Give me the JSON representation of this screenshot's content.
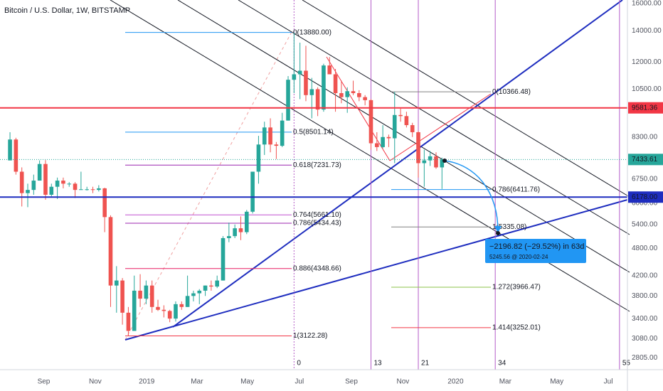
{
  "chart_data": {
    "type": "candlestick",
    "title": "Bitcoin / U.S. Dollar, 1W, BITSTAMP",
    "log_scale": true,
    "grid": true,
    "up_color": "#26a69a",
    "down_color": "#ef5350",
    "x": [
      0,
      1,
      2,
      3,
      4,
      5,
      6,
      7,
      8,
      9,
      10,
      11,
      12,
      13,
      14,
      15,
      16,
      17,
      18,
      19,
      20,
      21,
      22,
      23,
      24,
      25,
      26,
      27,
      28,
      29,
      30,
      31,
      32,
      33,
      34,
      35,
      36,
      37,
      38,
      39,
      40,
      41,
      42,
      43,
      44,
      45,
      46,
      47,
      48,
      49,
      50,
      51,
      52,
      53,
      54,
      55,
      56,
      57,
      58,
      59,
      60,
      61,
      62,
      63,
      64,
      65,
      66,
      67,
      68,
      69,
      70,
      71,
      72,
      73
    ],
    "open": [
      7400,
      8200,
      7000,
      6300,
      6400,
      6700,
      7270,
      6250,
      6500,
      6700,
      6600,
      6600,
      6400,
      6420,
      6420,
      6400,
      6450,
      5600,
      4000,
      4100,
      3500,
      3200,
      3900,
      3750,
      4000,
      3600,
      3550,
      3530,
      3400,
      3650,
      3600,
      3800,
      3850,
      3900,
      4000,
      3980,
      4100,
      5050,
      5100,
      5300,
      5200,
      5750,
      7000,
      8000,
      8700,
      8000,
      7950,
      9000,
      11000,
      11300,
      11500,
      10200,
      10500,
      9500,
      11800,
      11300,
      10300,
      10100,
      10400,
      10300,
      10100,
      9950,
      8050,
      7900,
      8300,
      8250,
      9250,
      9200,
      8800,
      8500,
      7300,
      7400,
      7550,
      7150
    ],
    "high": [
      8500,
      8270,
      7150,
      6600,
      6900,
      7400,
      7410,
      6600,
      6800,
      6800,
      6650,
      6650,
      7000,
      6500,
      6500,
      6550,
      6470,
      5650,
      4400,
      4150,
      3600,
      4200,
      4230,
      4100,
      4100,
      3730,
      3630,
      3550,
      3700,
      3700,
      4200,
      3900,
      3930,
      4000,
      4100,
      4200,
      5100,
      5450,
      5400,
      5620,
      5800,
      7000,
      8350,
      8950,
      9100,
      8100,
      9350,
      11200,
      13880,
      13200,
      13000,
      11100,
      10600,
      11900,
      12300,
      11600,
      10950,
      10600,
      10950,
      10450,
      10200,
      10000,
      8500,
      8800,
      8400,
      10366.48,
      9550,
      9400,
      8900,
      8550,
      7800,
      7750,
      7700,
      7500
    ],
    "low": [
      7400,
      6900,
      5900,
      5880,
      6250,
      6700,
      6100,
      6200,
      6120,
      6450,
      6500,
      6150,
      6400,
      6380,
      6300,
      6350,
      5200,
      3600,
      3500,
      3300,
      3122.28,
      3200,
      3600,
      3650,
      3500,
      3530,
      3420,
      3340,
      3350,
      3550,
      3600,
      3700,
      3650,
      3800,
      3900,
      3950,
      4100,
      4950,
      5050,
      5000,
      5150,
      5700,
      6600,
      7600,
      7700,
      7450,
      7900,
      9000,
      10300,
      10000,
      9900,
      9100,
      9200,
      9400,
      11300,
      9400,
      9800,
      9350,
      10200,
      9900,
      9700,
      7800,
      7750,
      7850,
      7900,
      7300,
      8950,
      8700,
      8300,
      6800,
      6500,
      7200,
      7100,
      6430
    ],
    "close": [
      8200,
      7000,
      6300,
      6400,
      6700,
      7270,
      6250,
      6500,
      6700,
      6600,
      6600,
      6400,
      6420,
      6420,
      6400,
      6450,
      5600,
      4000,
      4100,
      3500,
      3200,
      3900,
      3750,
      4000,
      3600,
      3550,
      3530,
      3400,
      3650,
      3600,
      3800,
      3850,
      3900,
      4000,
      3980,
      4100,
      5050,
      5100,
      5300,
      5200,
      5750,
      7000,
      8000,
      8700,
      8000,
      7950,
      9000,
      11000,
      11300,
      11500,
      10200,
      10500,
      9500,
      11800,
      11300,
      10300,
      10100,
      10400,
      10300,
      10100,
      9950,
      8050,
      7900,
      8300,
      8250,
      9250,
      9200,
      8800,
      8500,
      7300,
      7400,
      7550,
      7150,
      7433.61
    ],
    "xlim": [
      -1.69,
      104.34
    ],
    "xticks": [
      {
        "value": 5.7,
        "label": "Sep"
      },
      {
        "value": 14.4,
        "label": "Nov"
      },
      {
        "value": 23.1,
        "label": "2019"
      },
      {
        "value": 31.6,
        "label": "Mar"
      },
      {
        "value": 40.1,
        "label": "May"
      },
      {
        "value": 48.9,
        "label": "Jul"
      },
      {
        "value": 57.7,
        "label": "Sep"
      },
      {
        "value": 66.4,
        "label": "Nov"
      },
      {
        "value": 75.3,
        "label": "2020"
      },
      {
        "value": 83.7,
        "label": "Mar"
      },
      {
        "value": 92.4,
        "label": "May"
      },
      {
        "value": 101.1,
        "label": "Jul"
      }
    ],
    "ylim": [
      2645,
      16280
    ],
    "yticks": [
      {
        "value": 16000,
        "label": "16000.00"
      },
      {
        "value": 14000,
        "label": "14000.00"
      },
      {
        "value": 12000,
        "label": "12000.00"
      },
      {
        "value": 10500,
        "label": "10500.00"
      },
      {
        "value": 8300,
        "label": "8300.00"
      },
      {
        "value": 6750,
        "label": "6750.00"
      },
      {
        "value": 6000,
        "label": "6000.00"
      },
      {
        "value": 5400,
        "label": "5400.00"
      },
      {
        "value": 4800,
        "label": "4800.00"
      },
      {
        "value": 4200,
        "label": "4200.00"
      },
      {
        "value": 3800,
        "label": "3800.00"
      },
      {
        "value": 3400,
        "label": "3400.00"
      },
      {
        "value": 3080,
        "label": "3080.00"
      },
      {
        "value": 2805,
        "label": "2805.00"
      }
    ],
    "hlines": [
      {
        "value": 9581.36,
        "color": "#f23645"
      },
      {
        "value": 6178,
        "label": "6178.00",
        "color": "#1e2dbf"
      }
    ],
    "last_price": {
      "value": 7433.61,
      "color": "#26a69a"
    },
    "fib_left": [
      {
        "label": "0(13880.00)",
        "value": 13880,
        "color": "#2196f3"
      },
      {
        "label": "0.5(8501.14)",
        "value": 8501.14,
        "color": "#2196f3"
      },
      {
        "label": "0.618(7231.73)",
        "value": 7231.73,
        "color": "#9c27b0"
      },
      {
        "label": "0.764(5661.10)",
        "value": 5661.1,
        "color": "#c050d0"
      },
      {
        "label": "0.786(5434.43)",
        "value": 5434.43,
        "color": "#9c27b0"
      },
      {
        "label": "0.886(4348.66)",
        "value": 4348.66,
        "color": "#e91e63"
      },
      {
        "label": "1(3122.28)",
        "value": 3122.28,
        "color": "#f23645"
      }
    ],
    "fib_right": [
      {
        "label": "0(10366.48)",
        "value": 10366.48,
        "color": "#808080"
      },
      {
        "label": "0.786(6411.76)",
        "value": 6411.76,
        "color": "#2196f3"
      },
      {
        "label": "1(5335.08)",
        "value": 5335.08,
        "color": "#808080"
      },
      {
        "label": "1.272(3966.47)",
        "value": 3966.47,
        "color": "#8bc34a"
      },
      {
        "label": "1.414(3252.01)",
        "value": 3252.01,
        "color": "#f23645"
      }
    ],
    "time_zones": {
      "x": [
        48,
        61,
        69,
        82,
        103
      ],
      "labels": [
        0,
        13,
        21,
        34,
        55
      ],
      "color": "#b45cc8"
    },
    "measure": {
      "text": "−2196.82 (−29.52%) in 63d",
      "subtext": "5245.56 @ 2020-02-24",
      "color": "#2196f3"
    }
  }
}
